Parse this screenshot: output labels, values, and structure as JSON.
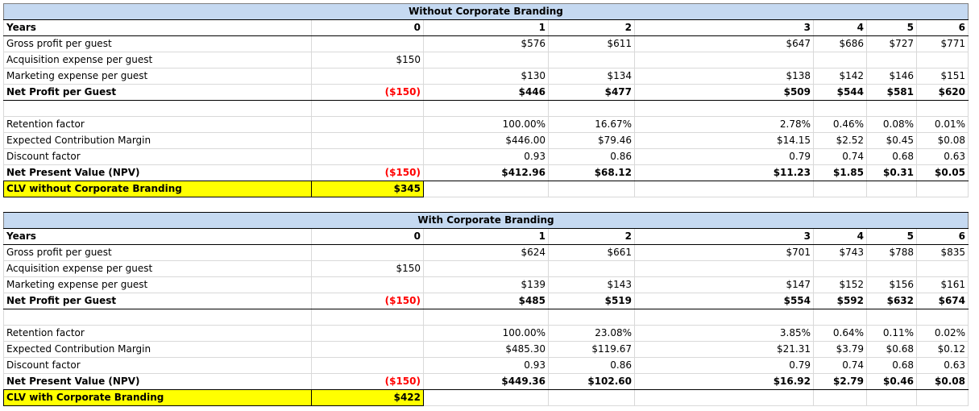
{
  "sections": [
    {
      "title": "Without Corporate Branding",
      "years_label": "Years",
      "years": [
        "0",
        "1",
        "2",
        "3",
        "4",
        "5",
        "6"
      ],
      "gross": {
        "label": "Gross profit per guest",
        "values": [
          "",
          "$576",
          "$611",
          "$647",
          "$686",
          "$727",
          "$771"
        ]
      },
      "acq": {
        "label": "Acquisition expense per guest",
        "values": [
          "$150",
          "",
          "",
          "",
          "",
          "",
          ""
        ]
      },
      "mkt": {
        "label": "Marketing expense per guest",
        "values": [
          "",
          "$130",
          "$134",
          "$138",
          "$142",
          "$146",
          "$151"
        ]
      },
      "net": {
        "label": "Net Profit per Guest",
        "values": [
          "($150)",
          "$446",
          "$477",
          "$509",
          "$544",
          "$581",
          "$620"
        ]
      },
      "ret": {
        "label": "Retention factor",
        "values": [
          "",
          "100.00%",
          "16.67%",
          "2.78%",
          "0.46%",
          "0.08%",
          "0.01%"
        ]
      },
      "ecm": {
        "label": "Expected Contribution Margin",
        "values": [
          "",
          "$446.00",
          "$79.46",
          "$14.15",
          "$2.52",
          "$0.45",
          "$0.08"
        ]
      },
      "disc": {
        "label": "Discount factor",
        "values": [
          "",
          "0.93",
          "0.86",
          "0.79",
          "0.74",
          "0.68",
          "0.63"
        ]
      },
      "npv": {
        "label": "Net Present Value (NPV)",
        "values": [
          "($150)",
          "$412.96",
          "$68.12",
          "$11.23",
          "$1.85",
          "$0.31",
          "$0.05"
        ]
      },
      "clv": {
        "label": "CLV without Corporate Branding",
        "value": "$345"
      }
    },
    {
      "title": "With Corporate Branding",
      "years_label": "Years",
      "years": [
        "0",
        "1",
        "2",
        "3",
        "4",
        "5",
        "6"
      ],
      "gross": {
        "label": "Gross profit per guest",
        "values": [
          "",
          "$624",
          "$661",
          "$701",
          "$743",
          "$788",
          "$835"
        ]
      },
      "acq": {
        "label": "Acquisition expense per guest",
        "values": [
          "$150",
          "",
          "",
          "",
          "",
          "",
          ""
        ]
      },
      "mkt": {
        "label": "Marketing expense per guest",
        "values": [
          "",
          "$139",
          "$143",
          "$147",
          "$152",
          "$156",
          "$161"
        ]
      },
      "net": {
        "label": "Net Profit per Guest",
        "values": [
          "($150)",
          "$485",
          "$519",
          "$554",
          "$592",
          "$632",
          "$674"
        ]
      },
      "ret": {
        "label": "Retention factor",
        "values": [
          "",
          "100.00%",
          "23.08%",
          "3.85%",
          "0.64%",
          "0.11%",
          "0.02%"
        ]
      },
      "ecm": {
        "label": "Expected Contribution Margin",
        "values": [
          "",
          "$485.30",
          "$119.67",
          "$21.31",
          "$3.79",
          "$0.68",
          "$0.12"
        ]
      },
      "disc": {
        "label": "Discount factor",
        "values": [
          "",
          "0.93",
          "0.86",
          "0.79",
          "0.74",
          "0.68",
          "0.63"
        ]
      },
      "npv": {
        "label": "Net Present Value (NPV)",
        "values": [
          "($150)",
          "$449.36",
          "$102.60",
          "$16.92",
          "$2.79",
          "$0.46",
          "$0.08"
        ]
      },
      "clv": {
        "label": "CLV with Corporate Branding",
        "value": "$422"
      }
    }
  ],
  "colors": {
    "header_bg": "#c5d9f1",
    "highlight": "#ffff00",
    "negative": "#ff0000"
  }
}
